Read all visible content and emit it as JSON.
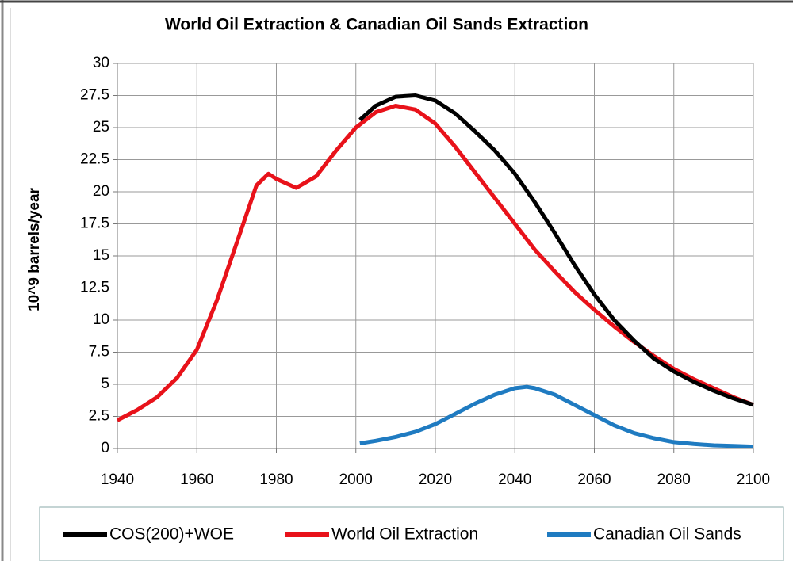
{
  "chart_data": {
    "type": "line",
    "title": "World Oil Extraction & Canadian Oil Sands Extraction",
    "y_label": "10^9 barrels/year",
    "xlim": [
      1940,
      2100
    ],
    "xticks": [
      1940,
      1960,
      1980,
      2000,
      2020,
      2040,
      2060,
      2080,
      2100
    ],
    "ylim": [
      0,
      30
    ],
    "yticks": [
      0,
      2.5,
      5,
      7.5,
      10,
      12.5,
      15,
      17.5,
      20,
      22.5,
      25,
      27.5,
      30
    ],
    "grid": true,
    "legend": "bottom",
    "series": [
      {
        "name": "COS(200)+WOE",
        "color": "#000000",
        "x": [
          2001,
          2005,
          2010,
          2015,
          2020,
          2025,
          2030,
          2035,
          2040,
          2045,
          2050,
          2055,
          2060,
          2065,
          2070,
          2075,
          2080,
          2085,
          2090,
          2095,
          2100
        ],
        "values": [
          25.6,
          26.7,
          27.4,
          27.5,
          27.1,
          26.1,
          24.7,
          23.2,
          21.4,
          19.2,
          16.8,
          14.3,
          12.0,
          10.0,
          8.4,
          7.0,
          6.0,
          5.2,
          4.5,
          3.9,
          3.4
        ]
      },
      {
        "name": "World Oil Extraction",
        "color": "#e8121a",
        "x": [
          1940,
          1945,
          1950,
          1955,
          1960,
          1965,
          1970,
          1975,
          1978,
          1980,
          1985,
          1990,
          1995,
          2000,
          2005,
          2010,
          2015,
          2020,
          2025,
          2030,
          2035,
          2040,
          2045,
          2050,
          2055,
          2060,
          2065,
          2070,
          2075,
          2080,
          2085,
          2090,
          2095,
          2100
        ],
        "values": [
          2.2,
          3.0,
          4.0,
          5.5,
          7.7,
          11.5,
          16,
          20.5,
          21.4,
          21.0,
          20.3,
          21.2,
          23.2,
          25,
          26.2,
          26.7,
          26.4,
          25.3,
          23.5,
          21.5,
          19.5,
          17.5,
          15.5,
          13.8,
          12.2,
          10.8,
          9.5,
          8.3,
          7.2,
          6.2,
          5.4,
          4.7,
          4.0,
          3.4
        ]
      },
      {
        "name": "Canadian Oil Sands",
        "color": "#1f7bc1",
        "x": [
          2001,
          2005,
          2010,
          2015,
          2020,
          2025,
          2030,
          2035,
          2040,
          2043,
          2045,
          2050,
          2055,
          2060,
          2065,
          2070,
          2075,
          2080,
          2085,
          2090,
          2095,
          2100
        ],
        "values": [
          0.4,
          0.6,
          0.9,
          1.3,
          1.9,
          2.7,
          3.5,
          4.2,
          4.7,
          4.8,
          4.7,
          4.2,
          3.4,
          2.6,
          1.8,
          1.2,
          0.8,
          0.5,
          0.35,
          0.25,
          0.2,
          0.15
        ]
      }
    ]
  }
}
